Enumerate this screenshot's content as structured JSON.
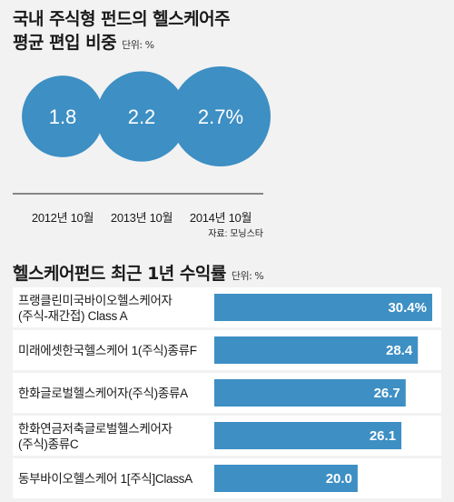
{
  "chart_data": [
    {
      "type": "bubble",
      "title": "국내 주식형 펀드의 헬스케어주 평균 편입 비중",
      "title_lines": [
        "국내 주식형 펀드의 헬스케어주",
        "평균 편입 비중"
      ],
      "unit": "단위: %",
      "categories": [
        "2012년 10월",
        "2013년 10월",
        "2014년 10월"
      ],
      "values": [
        1.8,
        2.2,
        2.7
      ],
      "value_labels": [
        "1.8",
        "2.2",
        "2.7%"
      ],
      "source": "자료: 모닝스타",
      "color": "#3d8fc4"
    },
    {
      "type": "bar",
      "orientation": "horizontal",
      "title": "헬스케어펀드 최근 1년 수익률",
      "unit": "단위: %",
      "categories": [
        [
          "프랭클린미국바이오헬스케어자",
          "(주식-재간접) Class A"
        ],
        [
          "미래에셋한국헬스케어 1(주식)종류F"
        ],
        [
          "한화글로벌헬스케어자(주식)종류A"
        ],
        [
          "한화연금저축글로벌헬스케어자",
          "(주식)종류C"
        ],
        [
          "동부바이오헬스케어 1[주식]ClassA"
        ]
      ],
      "values": [
        30.4,
        28.4,
        26.7,
        26.1,
        20.0
      ],
      "value_labels": [
        "30.4%",
        "28.4",
        "26.7",
        "26.1",
        "20.0"
      ],
      "xlim": [
        0,
        30.4
      ],
      "color": "#3d8fc4"
    }
  ]
}
